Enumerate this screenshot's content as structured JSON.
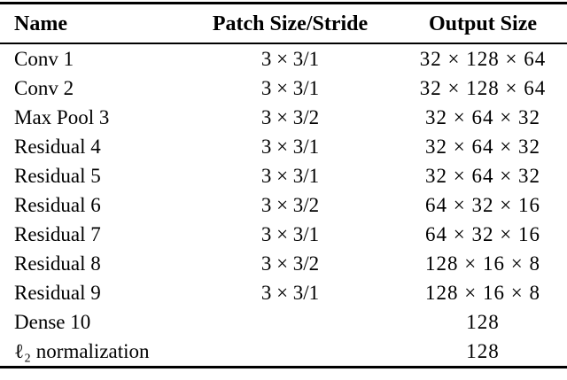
{
  "table": {
    "headers": [
      "Name",
      "Patch Size/Stride",
      "Output Size"
    ],
    "rows": [
      {
        "name": "Conv 1",
        "patch": "3 × 3/1",
        "output": "32 × 128 × 64"
      },
      {
        "name": "Conv 2",
        "patch": "3 × 3/1",
        "output": "32 × 128 × 64"
      },
      {
        "name": "Max Pool 3",
        "patch": "3 × 3/2",
        "output": "32 × 64 × 32"
      },
      {
        "name": "Residual 4",
        "patch": "3 × 3/1",
        "output": "32 × 64 × 32"
      },
      {
        "name": "Residual 5",
        "patch": "3 × 3/1",
        "output": "32 × 64 × 32"
      },
      {
        "name": "Residual 6",
        "patch": "3 × 3/2",
        "output": "64 × 32 × 16"
      },
      {
        "name": "Residual 7",
        "patch": "3 × 3/1",
        "output": "64 × 32 × 16"
      },
      {
        "name": "Residual 8",
        "patch": "3 × 3/2",
        "output": "128 × 16 × 8"
      },
      {
        "name": "Residual 9",
        "patch": "3 × 3/1",
        "output": "128 × 16 × 8"
      },
      {
        "name": "Dense 10",
        "patch": "",
        "output": "128"
      },
      {
        "name": "ℓ₂ normalization",
        "patch": "",
        "output": "128"
      }
    ],
    "colors": {
      "text": "#000000",
      "background": "#ffffff",
      "rule": "#000000"
    }
  }
}
